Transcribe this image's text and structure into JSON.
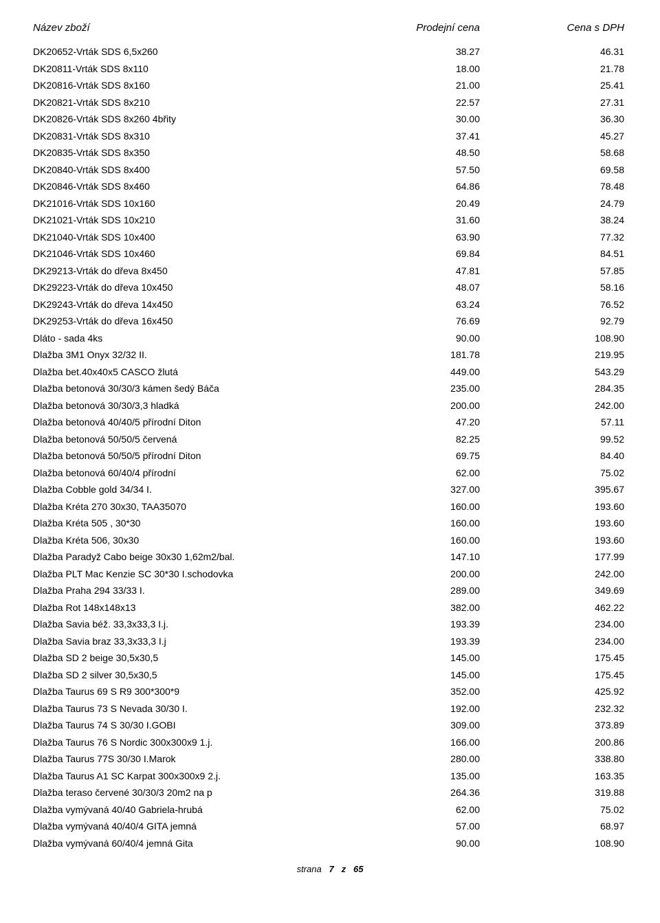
{
  "header": {
    "name": "Název zboží",
    "price": "Prodejní cena",
    "vat": "Cena s DPH"
  },
  "rows": [
    {
      "name": "DK20652-Vrták SDS 6,5x260",
      "price": "38.27",
      "vat": "46.31"
    },
    {
      "name": "DK20811-Vrták SDS 8x110",
      "price": "18.00",
      "vat": "21.78"
    },
    {
      "name": "DK20816-Vrták SDS 8x160",
      "price": "21.00",
      "vat": "25.41"
    },
    {
      "name": "DK20821-Vrták SDS 8x210",
      "price": "22.57",
      "vat": "27.31"
    },
    {
      "name": "DK20826-Vrták SDS 8x260   4břity",
      "price": "30.00",
      "vat": "36.30"
    },
    {
      "name": "DK20831-Vrták SDS 8x310",
      "price": "37.41",
      "vat": "45.27"
    },
    {
      "name": "DK20835-Vrták SDS 8x350",
      "price": "48.50",
      "vat": "58.68"
    },
    {
      "name": "DK20840-Vrták SDS 8x400",
      "price": "57.50",
      "vat": "69.58"
    },
    {
      "name": "DK20846-Vrták SDS 8x460",
      "price": "64.86",
      "vat": "78.48"
    },
    {
      "name": "DK21016-Vrták SDS 10x160",
      "price": "20.49",
      "vat": "24.79"
    },
    {
      "name": "DK21021-Vrták SDS 10x210",
      "price": "31.60",
      "vat": "38.24"
    },
    {
      "name": "DK21040-Vrták SDS 10x400",
      "price": "63.90",
      "vat": "77.32"
    },
    {
      "name": "DK21046-Vrták SDS 10x460",
      "price": "69.84",
      "vat": "84.51"
    },
    {
      "name": "DK29213-Vrták do dřeva 8x450",
      "price": "47.81",
      "vat": "57.85"
    },
    {
      "name": "DK29223-Vrták do dřeva 10x450",
      "price": "48.07",
      "vat": "58.16"
    },
    {
      "name": "DK29243-Vrták do dřeva 14x450",
      "price": "63.24",
      "vat": "76.52"
    },
    {
      "name": "DK29253-Vrták do dřeva 16x450",
      "price": "76.69",
      "vat": "92.79"
    },
    {
      "name": "Dláto - sada 4ks",
      "price": "90.00",
      "vat": "108.90"
    },
    {
      "name": "Dlažba 3M1 Onyx 32/32 II.",
      "price": "181.78",
      "vat": "219.95"
    },
    {
      "name": "Dlažba bet.40x40x5 CASCO žlutá",
      "price": "449.00",
      "vat": "543.29"
    },
    {
      "name": "Dlažba betonová 30/30/3 kámen šedý Báča",
      "price": "235.00",
      "vat": "284.35"
    },
    {
      "name": "Dlažba betonová 30/30/3,3 hladká",
      "price": "200.00",
      "vat": "242.00"
    },
    {
      "name": "Dlažba betonová 40/40/5 přírodní Diton",
      "price": "47.20",
      "vat": "57.11"
    },
    {
      "name": "Dlažba betonová 50/50/5 červená",
      "price": "82.25",
      "vat": "99.52"
    },
    {
      "name": "Dlažba betonová 50/50/5 přírodní Diton",
      "price": "69.75",
      "vat": "84.40"
    },
    {
      "name": "Dlažba betonová 60/40/4 přírodní",
      "price": "62.00",
      "vat": "75.02"
    },
    {
      "name": "Dlažba Cobble gold 34/34 I.",
      "price": "327.00",
      "vat": "395.67"
    },
    {
      "name": "Dlažba Kréta 270 30x30, TAA35070",
      "price": "160.00",
      "vat": "193.60"
    },
    {
      "name": "Dlažba Kréta 505 , 30*30",
      "price": "160.00",
      "vat": "193.60"
    },
    {
      "name": "Dlažba Kréta 506, 30x30",
      "price": "160.00",
      "vat": "193.60"
    },
    {
      "name": "Dlažba Paradyž Cabo beige 30x30 1,62m2/bal.",
      "price": "147.10",
      "vat": "177.99"
    },
    {
      "name": "Dlažba PLT Mac Kenzie SC 30*30 I.schodovka",
      "price": "200.00",
      "vat": "242.00"
    },
    {
      "name": "Dlažba Praha 294 33/33 I.",
      "price": "289.00",
      "vat": "349.69"
    },
    {
      "name": "Dlažba Rot 148x148x13",
      "price": "382.00",
      "vat": "462.22"
    },
    {
      "name": "Dlažba Savia béž. 33,3x33,3 I.j.",
      "price": "193.39",
      "vat": "234.00"
    },
    {
      "name": "Dlažba Savia braz 33,3x33,3 I.j",
      "price": "193.39",
      "vat": "234.00"
    },
    {
      "name": "Dlažba SD 2 beige 30,5x30,5",
      "price": "145.00",
      "vat": "175.45"
    },
    {
      "name": "Dlažba SD 2 silver 30,5x30,5",
      "price": "145.00",
      "vat": "175.45"
    },
    {
      "name": "Dlažba Taurus 69 S R9 300*300*9",
      "price": "352.00",
      "vat": "425.92"
    },
    {
      "name": "Dlažba Taurus 73 S Nevada 30/30 I.",
      "price": "192.00",
      "vat": "232.32"
    },
    {
      "name": "Dlažba Taurus 74 S 30/30 I.GOBI",
      "price": "309.00",
      "vat": "373.89"
    },
    {
      "name": "Dlažba Taurus 76 S Nordic 300x300x9 1.j.",
      "price": "166.00",
      "vat": "200.86"
    },
    {
      "name": "Dlažba Taurus 77S 30/30 I.Marok",
      "price": "280.00",
      "vat": "338.80"
    },
    {
      "name": "Dlažba Taurus A1 SC Karpat 300x300x9 2.j.",
      "price": "135.00",
      "vat": "163.35"
    },
    {
      "name": "Dlažba teraso červené 30/30/3  20m2 na p",
      "price": "264.36",
      "vat": "319.88"
    },
    {
      "name": "Dlažba vymývaná 40/40 Gabriela-hrubá",
      "price": "62.00",
      "vat": "75.02"
    },
    {
      "name": "Dlažba vymývaná 40/40/4 GITA jemná",
      "price": "57.00",
      "vat": "68.97"
    },
    {
      "name": "Dlažba vymývaná 60/40/4 jemná Gita",
      "price": "90.00",
      "vat": "108.90"
    }
  ],
  "footer": {
    "label": "strana",
    "page": "7",
    "sep": "z",
    "total": "65"
  }
}
